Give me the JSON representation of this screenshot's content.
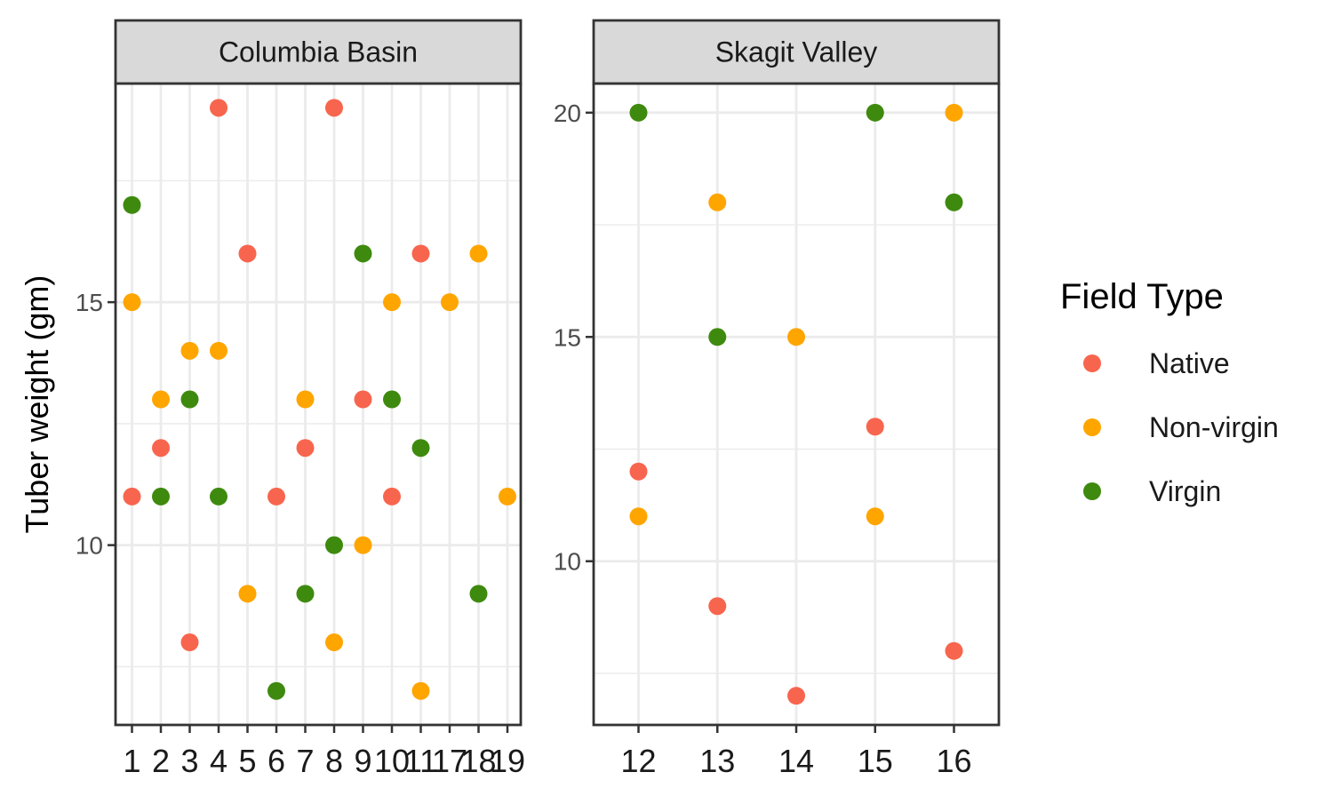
{
  "chart_data": {
    "type": "scatter",
    "ylabel": "Tuber weight (gm)",
    "xlabel": "",
    "legend": {
      "title": "Field Type",
      "position": "right",
      "entries": [
        {
          "label": "Native",
          "color": "#F8654E"
        },
        {
          "label": "Non-virgin",
          "color": "#FFA500"
        },
        {
          "label": "Virgin",
          "color": "#3E8A0F"
        }
      ]
    },
    "grid": true,
    "panels": [
      {
        "strip": "Columbia Basin",
        "x_ticks": [
          "1",
          "2",
          "3",
          "4",
          "5",
          "6",
          "7",
          "8",
          "9",
          "10",
          "11",
          "17",
          "18",
          "19"
        ],
        "y_ticks": [
          10,
          15
        ],
        "ylim": [
          6.3,
          19.5
        ],
        "points": {
          "Native": [
            [
              "1",
              11
            ],
            [
              "2",
              12
            ],
            [
              "3",
              8
            ],
            [
              "4",
              19
            ],
            [
              "5",
              16
            ],
            [
              "6",
              11
            ],
            [
              "7",
              12
            ],
            [
              "8",
              19
            ],
            [
              "9",
              13
            ],
            [
              "10",
              11
            ],
            [
              "11",
              16
            ]
          ],
          "Non-virgin": [
            [
              "1",
              15
            ],
            [
              "2",
              13
            ],
            [
              "3",
              14
            ],
            [
              "4",
              14
            ],
            [
              "5",
              9
            ],
            [
              "7",
              13
            ],
            [
              "8",
              8
            ],
            [
              "9",
              10
            ],
            [
              "10",
              15
            ],
            [
              "11",
              7
            ],
            [
              "17",
              15
            ],
            [
              "18",
              16
            ],
            [
              "19",
              11
            ]
          ],
          "Virgin": [
            [
              "1",
              17
            ],
            [
              "2",
              11
            ],
            [
              "3",
              13
            ],
            [
              "4",
              11
            ],
            [
              "6",
              7
            ],
            [
              "7",
              9
            ],
            [
              "8",
              10
            ],
            [
              "9",
              16
            ],
            [
              "10",
              13
            ],
            [
              "11",
              12
            ],
            [
              "18",
              9
            ]
          ]
        }
      },
      {
        "strip": "Skagit Valley",
        "x_ticks": [
          "12",
          "13",
          "14",
          "15",
          "16"
        ],
        "y_ticks": [
          10,
          15,
          20
        ],
        "ylim": [
          6.35,
          20.65
        ],
        "points": {
          "Native": [
            [
              "12",
              12
            ],
            [
              "13",
              9
            ],
            [
              "14",
              7
            ],
            [
              "15",
              13
            ],
            [
              "16",
              8
            ]
          ],
          "Non-virgin": [
            [
              "12",
              11
            ],
            [
              "13",
              18
            ],
            [
              "14",
              15
            ],
            [
              "15",
              11
            ],
            [
              "16",
              20
            ]
          ],
          "Virgin": [
            [
              "12",
              20
            ],
            [
              "13",
              15
            ],
            [
              "15",
              20
            ],
            [
              "16",
              18
            ]
          ]
        }
      }
    ]
  }
}
